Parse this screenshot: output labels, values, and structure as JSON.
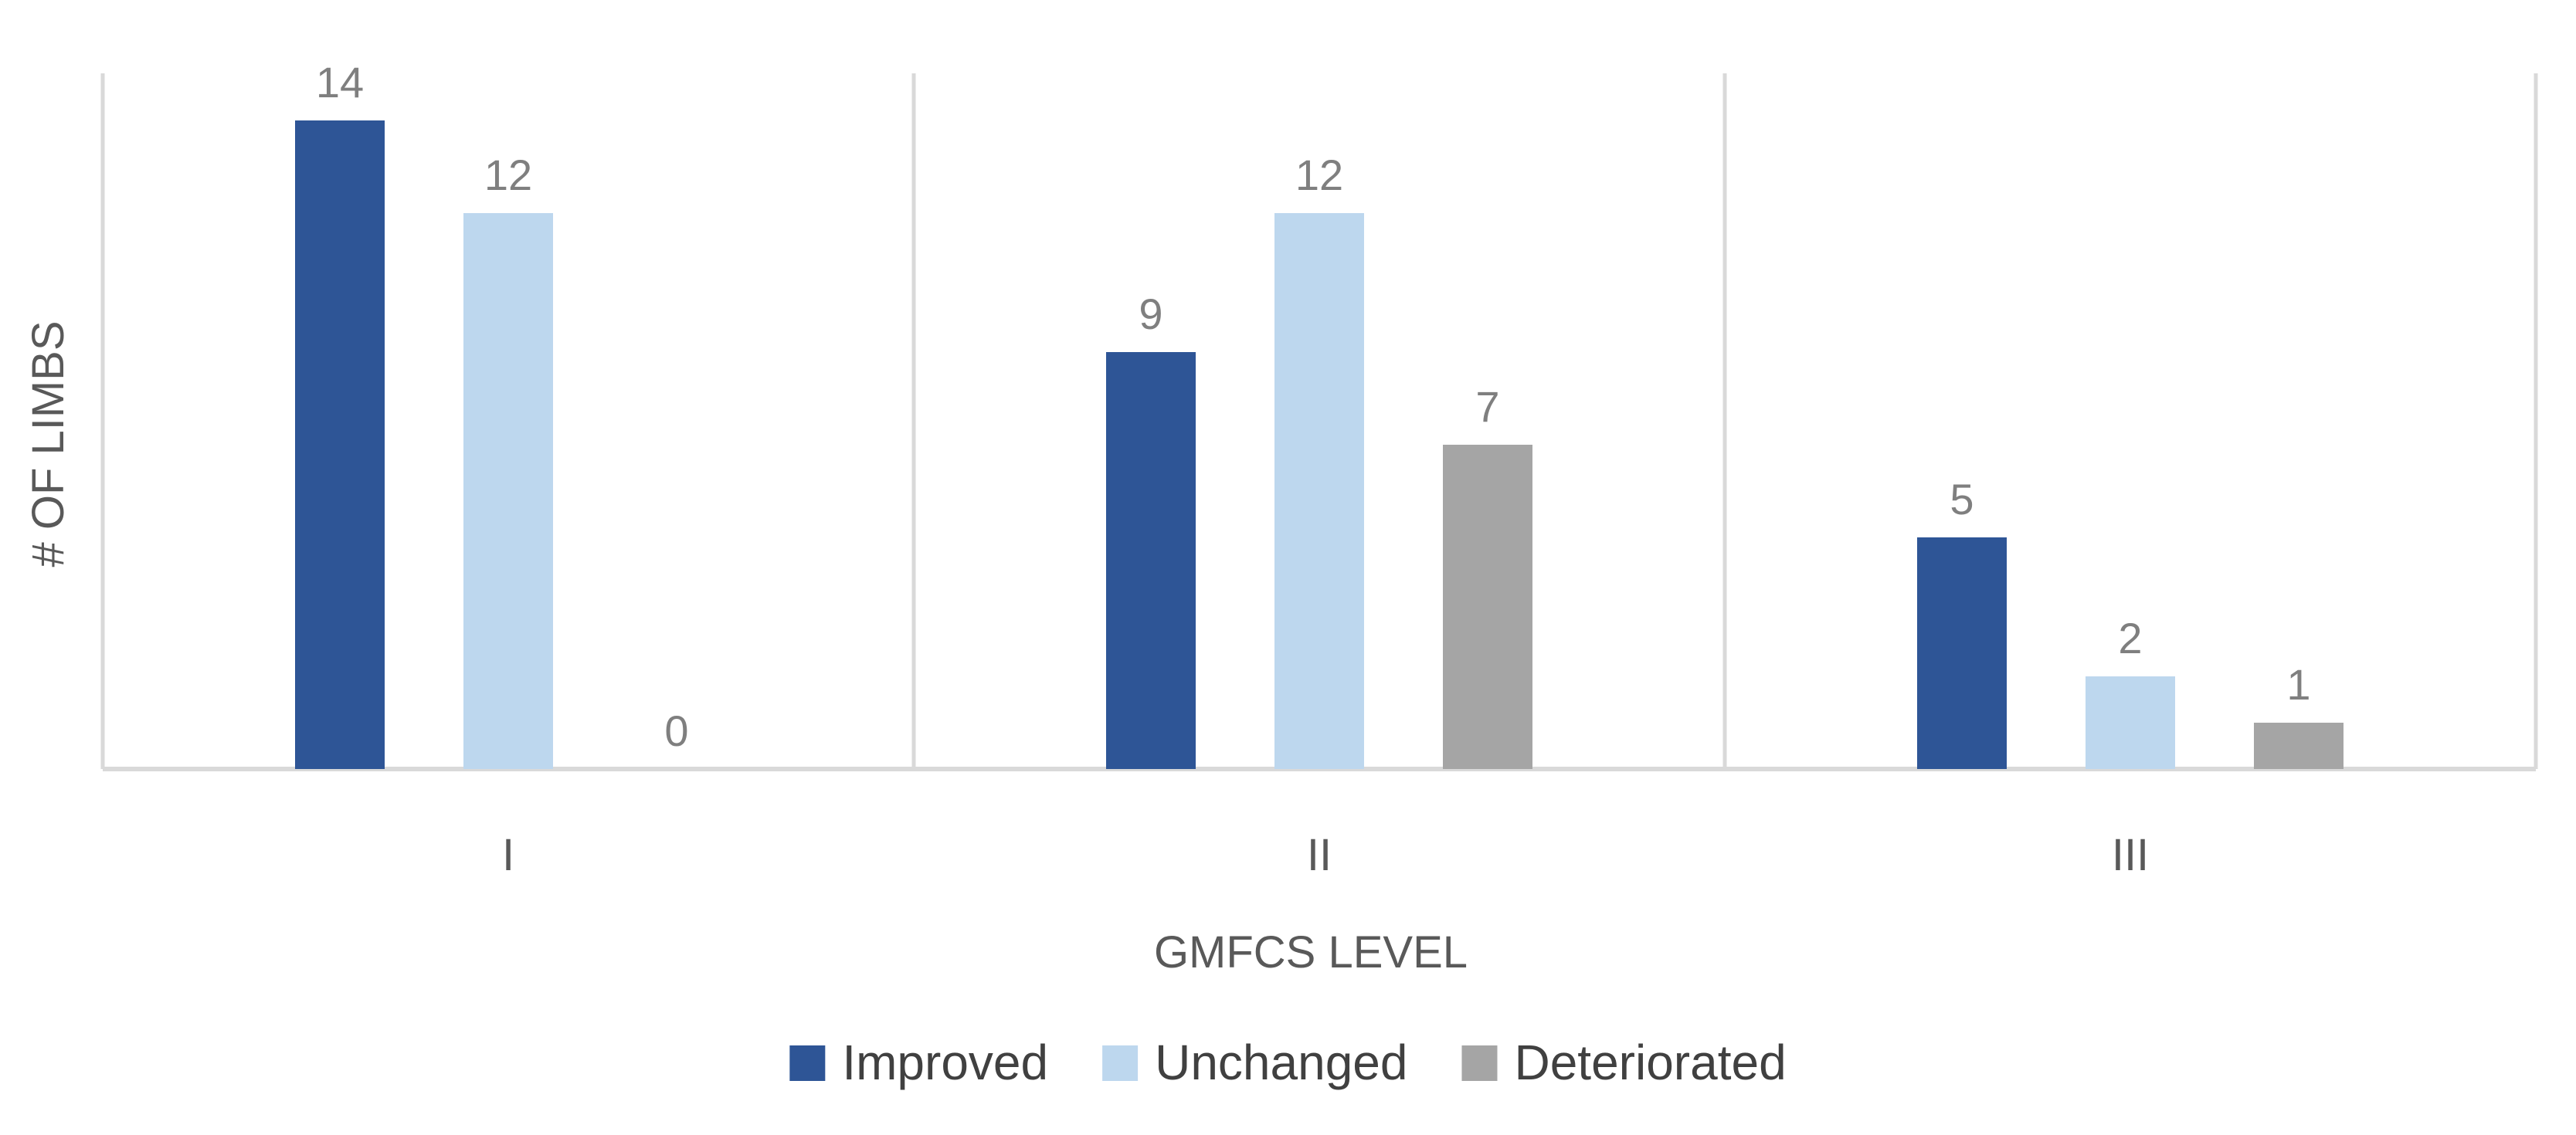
{
  "chart_data": {
    "type": "bar",
    "title": "",
    "xlabel": "GMFCS LEVEL",
    "ylabel": "# OF LIMBS",
    "categories": [
      "I",
      "II",
      "III"
    ],
    "ylim": [
      0,
      15
    ],
    "grid": false,
    "legend_position": "bottom",
    "series": [
      {
        "name": "Improved",
        "values": [
          14,
          9,
          5
        ],
        "color": "#2e5596"
      },
      {
        "name": "Unchanged",
        "values": [
          12,
          12,
          2
        ],
        "color": "#bdd7ee"
      },
      {
        "name": "Deteriorated",
        "values": [
          0,
          7,
          1
        ],
        "color": "#a5a5a5"
      }
    ],
    "data_labels": true
  },
  "colors": {
    "axis_line": "#d9d9d9",
    "separator_line": "#d9d9d9"
  }
}
